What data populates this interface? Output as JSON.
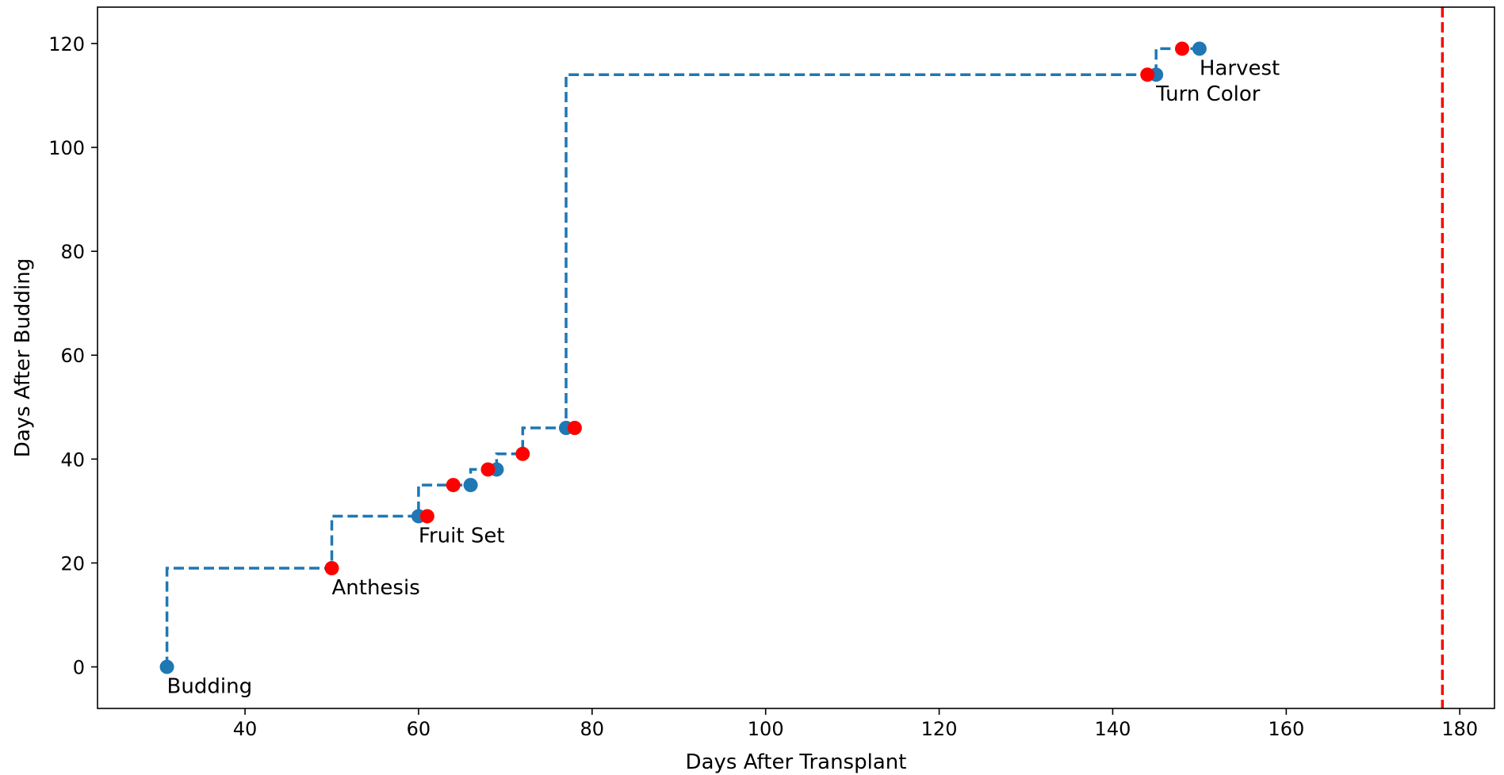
{
  "chart_data": {
    "type": "line",
    "xlabel": "Days After Transplant",
    "ylabel": "Days After Budding",
    "xlim": [
      23,
      184
    ],
    "ylim": [
      -8,
      127
    ],
    "xticks": [
      40,
      60,
      80,
      100,
      120,
      140,
      160,
      180
    ],
    "yticks": [
      0,
      20,
      40,
      60,
      80,
      100,
      120
    ],
    "grid": false,
    "series": [
      {
        "style": "step-post-dashed",
        "color": "#1f77b4",
        "points": [
          {
            "x": 31,
            "y": 0
          },
          {
            "x": 31,
            "y": 19
          },
          {
            "x": 50,
            "y": 19
          },
          {
            "x": 50,
            "y": 29
          },
          {
            "x": 60,
            "y": 29
          },
          {
            "x": 60,
            "y": 35
          },
          {
            "x": 66,
            "y": 35
          },
          {
            "x": 66,
            "y": 38
          },
          {
            "x": 69,
            "y": 38
          },
          {
            "x": 69,
            "y": 41
          },
          {
            "x": 72,
            "y": 41
          },
          {
            "x": 72,
            "y": 46
          },
          {
            "x": 77,
            "y": 46
          },
          {
            "x": 77,
            "y": 114
          },
          {
            "x": 145,
            "y": 114
          },
          {
            "x": 145,
            "y": 119
          },
          {
            "x": 150,
            "y": 119
          }
        ]
      }
    ],
    "blue_points": [
      {
        "x": 31,
        "y": 0
      },
      {
        "x": 60,
        "y": 29
      },
      {
        "x": 66,
        "y": 35
      },
      {
        "x": 69,
        "y": 38
      },
      {
        "x": 77,
        "y": 46
      },
      {
        "x": 145,
        "y": 114
      },
      {
        "x": 150,
        "y": 119
      }
    ],
    "red_points": [
      {
        "x": 50,
        "y": 19
      },
      {
        "x": 61,
        "y": 29
      },
      {
        "x": 64,
        "y": 35
      },
      {
        "x": 68,
        "y": 38
      },
      {
        "x": 72,
        "y": 41
      },
      {
        "x": 78,
        "y": 46
      },
      {
        "x": 144,
        "y": 114
      },
      {
        "x": 148,
        "y": 119
      }
    ],
    "annotations": [
      {
        "text": "Budding",
        "x": 31,
        "y": 0
      },
      {
        "text": "Anthesis",
        "x": 50,
        "y": 19
      },
      {
        "text": "Fruit Set",
        "x": 60,
        "y": 29
      },
      {
        "text": "Turn Color",
        "x": 145,
        "y": 114
      },
      {
        "text": "Harvest",
        "x": 150,
        "y": 119
      }
    ],
    "vline": {
      "x": 178,
      "color": "#ff0000",
      "style": "dashed"
    },
    "colors": {
      "blue": "#1f77b4",
      "red": "#ff0000"
    }
  }
}
